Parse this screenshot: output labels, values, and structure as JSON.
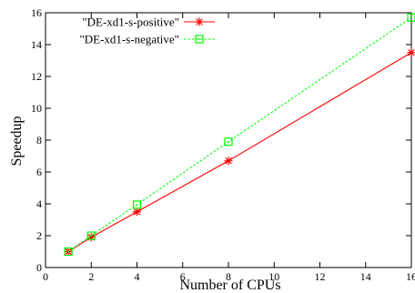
{
  "chart_data": {
    "type": "line",
    "title": "",
    "xlabel": "Number of CPUs",
    "ylabel": "Speedup",
    "xlim": [
      0,
      16
    ],
    "ylim": [
      0,
      16
    ],
    "x_ticks": [
      0,
      2,
      4,
      6,
      8,
      10,
      12,
      14,
      16
    ],
    "y_ticks": [
      0,
      2,
      4,
      6,
      8,
      10,
      12,
      14,
      16
    ],
    "grid": false,
    "legend_position": "top-left",
    "series": [
      {
        "name": "\"DE-xd1-s-positive\"",
        "color": "#ff0000",
        "line_style": "solid",
        "marker": "asterisk",
        "x": [
          1,
          2,
          4,
          8,
          16
        ],
        "y": [
          1.0,
          1.9,
          3.5,
          6.7,
          13.5
        ]
      },
      {
        "name": "\"DE-xd1-s-negative\"",
        "color": "#00ff00",
        "line_style": "dashed",
        "marker": "square-dot",
        "x": [
          1,
          2,
          4,
          8,
          16
        ],
        "y": [
          1.0,
          2.0,
          3.95,
          7.9,
          15.7
        ]
      }
    ]
  }
}
